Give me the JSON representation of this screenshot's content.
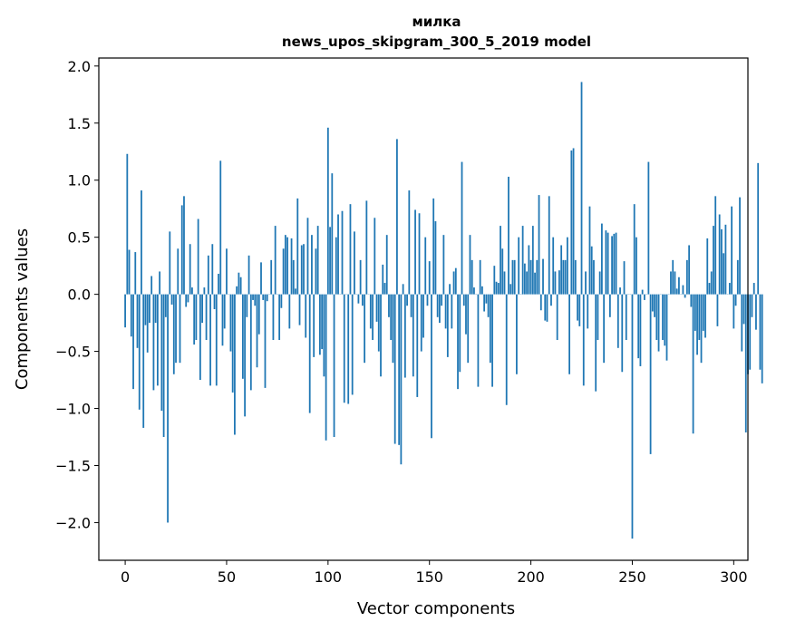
{
  "chart_data": {
    "type": "bar",
    "title": "милка",
    "subtitle": "news_upos_skipgram_300_5_2019 model",
    "xlabel": "Vector components",
    "ylabel": "Components values",
    "xlim": [
      -13,
      307
    ],
    "ylim": [
      -2.33,
      2.07
    ],
    "xticks": [
      0,
      50,
      100,
      150,
      200,
      250,
      300
    ],
    "yticks": [
      -2.0,
      -1.5,
      -1.0,
      -0.5,
      0.0,
      0.5,
      1.0,
      1.5,
      2.0
    ],
    "xtick_labels": [
      "0",
      "50",
      "100",
      "150",
      "200",
      "250",
      "300"
    ],
    "ytick_labels": [
      "−2.0",
      "−1.5",
      "−1.0",
      "−0.5",
      "0.0",
      "0.5",
      "1.0",
      "1.5",
      "2.0"
    ],
    "bar_color": "#1f77b4",
    "values": [
      -0.29,
      1.23,
      0.39,
      -0.37,
      -0.83,
      0.37,
      -0.47,
      -1.01,
      0.91,
      -1.17,
      -0.27,
      -0.51,
      -0.25,
      0.16,
      -0.84,
      -0.25,
      -0.8,
      0.2,
      -1.02,
      -1.25,
      -0.2,
      -2.0,
      0.55,
      -0.09,
      -0.7,
      -0.6,
      0.4,
      -0.6,
      0.78,
      0.86,
      -0.11,
      -0.07,
      0.44,
      0.06,
      -0.44,
      -0.4,
      0.66,
      -0.75,
      -0.25,
      0.06,
      -0.4,
      0.34,
      -0.8,
      0.44,
      -0.13,
      -0.8,
      0.18,
      1.17,
      -0.45,
      -0.3,
      0.4,
      0.0,
      -0.5,
      -0.86,
      -1.23,
      0.07,
      0.19,
      0.15,
      -0.74,
      -1.07,
      -0.2,
      0.34,
      -0.84,
      -0.05,
      -0.1,
      -0.64,
      -0.35,
      0.28,
      -0.05,
      -0.82,
      -0.06,
      0.0,
      0.3,
      -0.4,
      0.6,
      0.0,
      -0.4,
      -0.12,
      0.4,
      0.52,
      0.5,
      -0.3,
      0.49,
      0.3,
      0.05,
      0.84,
      -0.27,
      0.43,
      0.44,
      -0.38,
      0.67,
      -1.04,
      0.52,
      -0.55,
      0.4,
      0.6,
      -0.53,
      -0.48,
      -0.72,
      -1.28,
      1.46,
      0.59,
      1.06,
      -1.25,
      0.5,
      0.7,
      0.0,
      0.73,
      -0.95,
      0.0,
      -0.96,
      0.79,
      -0.88,
      0.55,
      0.0,
      -0.08,
      0.3,
      -0.1,
      -0.6,
      0.82,
      0.0,
      -0.3,
      -0.4,
      0.67,
      -0.24,
      -0.5,
      -0.72,
      0.26,
      0.1,
      0.52,
      -0.2,
      -0.4,
      -0.6,
      -1.31,
      1.36,
      -1.32,
      -1.49,
      0.09,
      -0.73,
      -0.1,
      0.91,
      -0.2,
      -0.72,
      0.74,
      -0.9,
      0.71,
      -0.5,
      -0.38,
      0.5,
      -0.1,
      0.29,
      -1.26,
      0.84,
      0.64,
      -0.2,
      -0.25,
      -0.1,
      0.52,
      -0.3,
      -0.55,
      0.09,
      -0.3,
      0.2,
      0.23,
      -0.83,
      -0.68,
      1.16,
      -0.1,
      -0.35,
      -0.6,
      0.52,
      0.3,
      0.06,
      0.0,
      -0.81,
      0.3,
      0.07,
      -0.15,
      -0.08,
      -0.2,
      -0.6,
      -0.81,
      0.25,
      0.11,
      0.1,
      0.6,
      0.4,
      0.2,
      -0.97,
      1.03,
      0.09,
      0.3,
      0.3,
      -0.7,
      0.5,
      0.0,
      0.6,
      0.27,
      0.2,
      0.43,
      0.3,
      0.6,
      0.19,
      0.3,
      0.87,
      -0.14,
      0.31,
      -0.23,
      -0.24,
      0.86,
      -0.1,
      0.5,
      0.2,
      -0.4,
      0.21,
      0.43,
      0.3,
      0.3,
      0.5,
      -0.7,
      1.26,
      1.28,
      0.3,
      -0.23,
      -0.28,
      1.86,
      -0.8,
      0.2,
      -0.3,
      0.77,
      0.42,
      0.3,
      -0.85,
      -0.4,
      0.2,
      0.62,
      -0.6,
      0.56,
      0.54,
      -0.2,
      0.51,
      0.53,
      0.54,
      -0.47,
      0.06,
      -0.68,
      0.29,
      -0.4,
      0.0,
      0.0,
      -2.14,
      0.79,
      0.5,
      -0.56,
      -0.63,
      0.04,
      -0.05,
      0.0,
      1.16,
      -1.4,
      -0.15,
      -0.2,
      -0.4,
      -0.5,
      0.0,
      -0.4,
      -0.45,
      -0.58,
      0.0,
      0.2,
      0.3,
      0.2,
      0.05,
      0.15,
      0.0,
      0.08,
      -0.03,
      0.3,
      0.43,
      -0.11,
      -1.22,
      -0.32,
      -0.53,
      -0.4,
      -0.6,
      -0.32,
      -0.38,
      0.49,
      0.1,
      0.2,
      0.6,
      0.86,
      -0.28,
      0.7,
      0.57,
      0.36,
      0.61,
      0.0,
      0.1,
      0.77,
      -0.3,
      -0.1,
      0.3,
      0.85,
      -0.5,
      -0.26,
      -1.21,
      -0.7,
      -0.66,
      -0.2,
      0.1,
      -0.31,
      1.15,
      -0.66,
      -0.78
    ]
  }
}
